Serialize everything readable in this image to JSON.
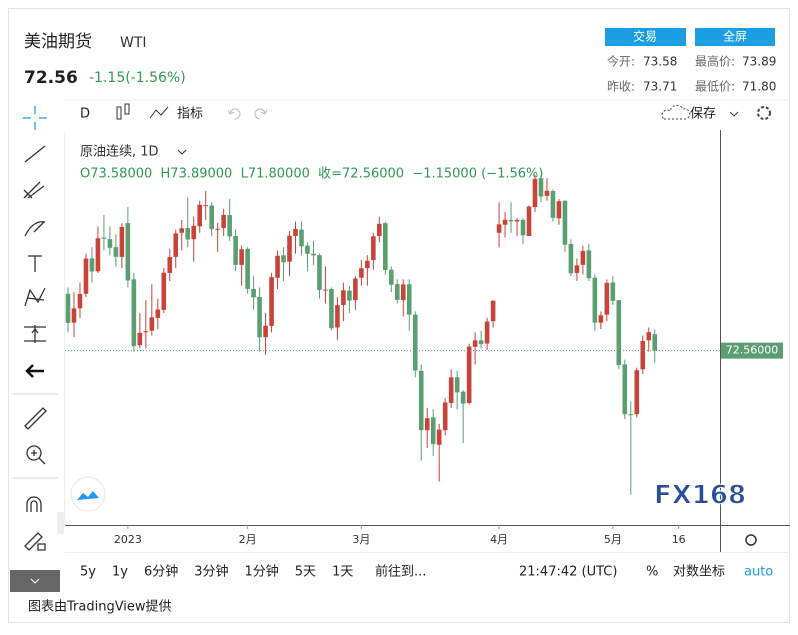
{
  "header": {
    "title": "美油期货",
    "symbol": "WTI",
    "price": "72.56",
    "change": "-1.15(-1.56%)",
    "buttons": [
      "交易",
      "全屏"
    ],
    "stats": [
      {
        "label": "今开:",
        "value": "73.58"
      },
      {
        "label": "最高价:",
        "value": "73.89"
      },
      {
        "label": "昨收:",
        "value": "73.71"
      },
      {
        "label": "最低价:",
        "value": "71.80"
      }
    ]
  },
  "toolbar": {
    "interval": "D",
    "indicators": "指标",
    "save": "保存"
  },
  "chart_data": {
    "type": "candlestick",
    "legend_title": "原油连续, 1D",
    "legend_values": "O73.58000  H73.89000  L71.80000  收=72.56000  −1.15000 (−1.56%)",
    "up_color": "#c8433a",
    "down_color": "#5a9e72",
    "xlim": [
      -0.5,
      108.9
    ],
    "ylim": [
      61.7,
      86.3
    ],
    "xticks": [
      {
        "value": 10,
        "label": "2023"
      },
      {
        "value": 30,
        "label": "2月"
      },
      {
        "value": 49,
        "label": "3月"
      },
      {
        "value": 72,
        "label": "4月"
      },
      {
        "value": 91,
        "label": "5月"
      },
      {
        "value": 102,
        "label": "16"
      }
    ],
    "last_price": {
      "value": 72.56,
      "label": "72.56000"
    },
    "open": [
      76.1,
      74.3,
      75.2,
      76.1,
      78.3,
      77.5,
      79.6,
      79.5,
      79.0,
      78.4,
      80.5,
      77.0,
      72.9,
      73.7,
      73.8,
      74.6,
      75.1,
      77.4,
      78.4,
      79.9,
      80.2,
      79.5,
      80.3,
      81.6,
      81.6,
      80.1,
      80.2,
      81.0,
      79.7,
      77.9,
      78.9,
      76.4,
      75.9,
      73.4,
      74.1,
      77.1,
      78.5,
      78.1,
      79.7,
      80.1,
      79.1,
      78.6,
      78.5,
      76.3,
      76.4,
      74.0,
      75.4,
      76.3,
      75.7,
      77.1,
      77.7,
      78.2,
      79.7,
      80.5,
      77.6,
      76.7,
      75.7,
      76.7,
      74.8,
      71.3,
      67.6,
      68.4,
      66.7,
      67.6,
      69.3,
      70.9,
      70.0,
      69.3,
      72.8,
      73.2,
      73.0,
      74.4,
      79.9,
      80.4,
      80.7,
      80.6,
      80.7,
      79.7,
      81.5,
      83.3,
      82.2,
      82.5,
      80.8,
      81.9,
      79.2,
      77.4,
      77.9,
      78.8,
      77.1,
      74.3,
      74.8,
      76.8,
      75.7,
      71.7,
      68.6,
      68.6,
      71.4,
      73.2,
      73.58
    ],
    "high": [
      76.5,
      76.2,
      76.8,
      78.6,
      79.0,
      80.3,
      81.0,
      80.3,
      79.8,
      80.5,
      81.5,
      77.4,
      74.9,
      75.7,
      76.7,
      75.8,
      77.7,
      78.9,
      80.1,
      80.7,
      82.1,
      80.9,
      81.9,
      82.5,
      81.8,
      80.5,
      81.4,
      82.0,
      80.1,
      79.1,
      79.0,
      77.2,
      76.5,
      74.9,
      77.4,
      78.8,
      79.0,
      80.0,
      80.6,
      80.6,
      79.3,
      79.4,
      78.6,
      77.8,
      76.5,
      75.9,
      76.8,
      76.6,
      77.2,
      78.2,
      78.5,
      79.9,
      80.9,
      80.6,
      77.8,
      77.0,
      77.0,
      77.0,
      75.0,
      71.7,
      69.0,
      68.9,
      68.0,
      69.6,
      71.4,
      71.3,
      70.1,
      73.0,
      73.7,
      73.8,
      74.6,
      75.7,
      81.8,
      81.2,
      81.8,
      80.8,
      80.8,
      81.6,
      83.5,
      83.5,
      83.3,
      82.6,
      82.0,
      81.9,
      79.5,
      78.3,
      79.1,
      79.2,
      77.3,
      75.0,
      77.0,
      77.2,
      75.7,
      72.0,
      69.4,
      71.5,
      73.5,
      74.0,
      73.89
    ],
    "low": [
      73.7,
      73.4,
      74.6,
      75.9,
      76.8,
      77.4,
      78.8,
      78.5,
      77.8,
      77.7,
      76.5,
      72.5,
      72.7,
      72.7,
      73.5,
      73.9,
      74.9,
      76.9,
      77.7,
      78.8,
      79.0,
      78.1,
      79.9,
      80.7,
      79.7,
      78.7,
      79.7,
      79.4,
      77.5,
      76.6,
      76.1,
      75.1,
      72.5,
      72.3,
      73.7,
      76.4,
      76.9,
      77.2,
      78.6,
      78.5,
      77.5,
      77.9,
      75.8,
      75.5,
      73.8,
      73.2,
      74.4,
      74.9,
      75.1,
      76.6,
      76.6,
      77.6,
      79.3,
      77.3,
      76.2,
      75.5,
      74.7,
      73.8,
      70.9,
      65.7,
      66.5,
      66.0,
      64.4,
      67.3,
      69.0,
      68.9,
      66.8,
      69.2,
      71.7,
      72.7,
      72.6,
      74.0,
      79.0,
      79.6,
      79.9,
      79.7,
      79.2,
      79.7,
      81.2,
      81.8,
      81.9,
      80.6,
      80.4,
      78.7,
      77.2,
      76.9,
      77.3,
      76.9,
      73.8,
      73.9,
      74.4,
      75.4,
      71.4,
      68.3,
      63.6,
      68.4,
      71.1,
      72.5,
      71.8
    ],
    "close": [
      74.29,
      75.19,
      76.09,
      78.29,
      77.49,
      79.56,
      79.53,
      78.96,
      78.4,
      80.26,
      76.93,
      72.84,
      73.67,
      73.77,
      74.63,
      75.12,
      77.41,
      78.39,
      79.86,
      80.18,
      79.48,
      80.33,
      81.64,
      81.62,
      80.13,
      80.15,
      81.01,
      79.68,
      77.9,
      78.87,
      76.41,
      75.88,
      73.39,
      74.11,
      77.14,
      78.47,
      78.06,
      79.72,
      80.14,
      79.06,
      78.59,
      78.49,
      76.34,
      76.36,
      73.95,
      75.39,
      76.32,
      75.68,
      77.05,
      77.69,
      78.16,
      79.68,
      80.46,
      77.58,
      76.66,
      75.72,
      76.68,
      74.8,
      71.33,
      67.61,
      68.35,
      66.74,
      67.64,
      69.33,
      70.9,
      69.96,
      69.26,
      72.81,
      73.2,
      72.97,
      74.37,
      75.67,
      80.42,
      80.71,
      80.61,
      80.7,
      79.74,
      81.53,
      83.26,
      82.16,
      82.52,
      80.83,
      81.86,
      79.16,
      77.37,
      77.87,
      78.76,
      77.07,
      74.3,
      74.76,
      76.78,
      75.66,
      71.66,
      68.6,
      68.56,
      71.34,
      73.16,
      73.71,
      72.56
    ]
  },
  "bottom_bar": {
    "ranges": [
      "5y",
      "1y",
      "6分钟",
      "3分钟",
      "1分钟",
      "5天",
      "1天"
    ],
    "goto": "前往到...",
    "time": "21:47:42 (UTC)",
    "percent": "%",
    "log": "对数坐标",
    "auto": "auto"
  },
  "footer": "图表由TradingView提供",
  "watermark": "FX168"
}
